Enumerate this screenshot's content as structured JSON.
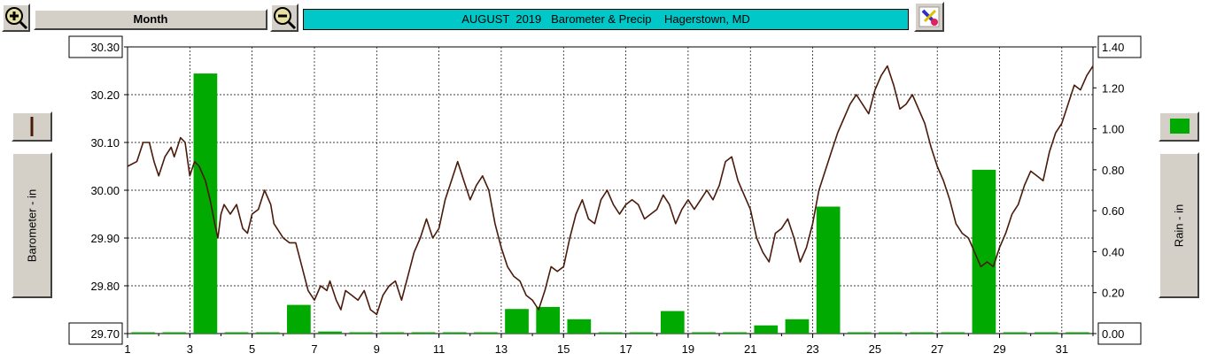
{
  "toolbar": {
    "period_label": "Month",
    "title": "AUGUST  2019   Barometer & Precip    Hagerstown, MD"
  },
  "left_axis": {
    "label": "Barometer - in"
  },
  "right_axis": {
    "label": "Rain - in"
  },
  "colors": {
    "pressure_line": "#4a1a0a",
    "rain_bar": "#00aa00",
    "title_bg": "#00c8c8"
  },
  "chart_data": {
    "type": "bar+line",
    "x_ticks": [
      "1",
      "3",
      "5",
      "7",
      "9",
      "11",
      "13",
      "15",
      "17",
      "19",
      "21",
      "23",
      "25",
      "27",
      "29",
      "31"
    ],
    "x_range": [
      1,
      32
    ],
    "y_left": {
      "label": "Barometer - in",
      "range": [
        29.7,
        30.3
      ],
      "ticks": [
        "29.70",
        "29.80",
        "29.90",
        "30.00",
        "30.10",
        "30.20",
        "30.30"
      ]
    },
    "y_right": {
      "label": "Rain - in",
      "range": [
        0.0,
        1.4
      ],
      "ticks": [
        "0.00",
        "0.20",
        "0.40",
        "0.60",
        "0.80",
        "1.00",
        "1.20",
        "1.40"
      ]
    },
    "grid": true,
    "series": [
      {
        "type": "bar",
        "axis": "right",
        "values": [
          {
            "day": 1,
            "rain": 0.0
          },
          {
            "day": 2,
            "rain": 0.0
          },
          {
            "day": 3,
            "rain": 1.27
          },
          {
            "day": 4,
            "rain": 0.0
          },
          {
            "day": 5,
            "rain": 0.0
          },
          {
            "day": 6,
            "rain": 0.14
          },
          {
            "day": 7,
            "rain": 0.01
          },
          {
            "day": 8,
            "rain": 0.0
          },
          {
            "day": 9,
            "rain": 0.0
          },
          {
            "day": 10,
            "rain": 0.0
          },
          {
            "day": 11,
            "rain": 0.0
          },
          {
            "day": 12,
            "rain": 0.0
          },
          {
            "day": 13,
            "rain": 0.12
          },
          {
            "day": 14,
            "rain": 0.13
          },
          {
            "day": 15,
            "rain": 0.07
          },
          {
            "day": 16,
            "rain": 0.0
          },
          {
            "day": 17,
            "rain": 0.0
          },
          {
            "day": 18,
            "rain": 0.11
          },
          {
            "day": 19,
            "rain": 0.0
          },
          {
            "day": 20,
            "rain": 0.0
          },
          {
            "day": 21,
            "rain": 0.04
          },
          {
            "day": 22,
            "rain": 0.07
          },
          {
            "day": 23,
            "rain": 0.62
          },
          {
            "day": 24,
            "rain": 0.0
          },
          {
            "day": 25,
            "rain": 0.0
          },
          {
            "day": 26,
            "rain": 0.0
          },
          {
            "day": 27,
            "rain": 0.0
          },
          {
            "day": 28,
            "rain": 0.8
          },
          {
            "day": 29,
            "rain": 0.0
          },
          {
            "day": 30,
            "rain": 0.0
          },
          {
            "day": 31,
            "rain": 0.0
          }
        ]
      },
      {
        "type": "line",
        "axis": "left",
        "points": [
          [
            1.0,
            30.05
          ],
          [
            1.3,
            30.06
          ],
          [
            1.5,
            30.1
          ],
          [
            1.7,
            30.1
          ],
          [
            1.85,
            30.06
          ],
          [
            2.0,
            30.03
          ],
          [
            2.2,
            30.07
          ],
          [
            2.4,
            30.09
          ],
          [
            2.5,
            30.07
          ],
          [
            2.7,
            30.11
          ],
          [
            2.85,
            30.1
          ],
          [
            3.0,
            30.03
          ],
          [
            3.15,
            30.06
          ],
          [
            3.3,
            30.05
          ],
          [
            3.5,
            30.02
          ],
          [
            3.65,
            29.98
          ],
          [
            3.8,
            29.93
          ],
          [
            3.9,
            29.9
          ],
          [
            4.0,
            29.95
          ],
          [
            4.1,
            29.97
          ],
          [
            4.3,
            29.95
          ],
          [
            4.5,
            29.97
          ],
          [
            4.7,
            29.92
          ],
          [
            4.85,
            29.91
          ],
          [
            5.0,
            29.95
          ],
          [
            5.2,
            29.96
          ],
          [
            5.4,
            30.0
          ],
          [
            5.6,
            29.97
          ],
          [
            5.7,
            29.93
          ],
          [
            5.8,
            29.92
          ],
          [
            6.0,
            29.9
          ],
          [
            6.2,
            29.89
          ],
          [
            6.4,
            29.89
          ],
          [
            6.6,
            29.84
          ],
          [
            6.8,
            29.79
          ],
          [
            7.0,
            29.77
          ],
          [
            7.2,
            29.8
          ],
          [
            7.4,
            29.79
          ],
          [
            7.5,
            29.81
          ],
          [
            7.7,
            29.77
          ],
          [
            7.85,
            29.75
          ],
          [
            8.0,
            29.79
          ],
          [
            8.2,
            29.78
          ],
          [
            8.4,
            29.77
          ],
          [
            8.6,
            29.79
          ],
          [
            8.8,
            29.75
          ],
          [
            9.0,
            29.74
          ],
          [
            9.2,
            29.78
          ],
          [
            9.4,
            29.8
          ],
          [
            9.6,
            29.81
          ],
          [
            9.8,
            29.77
          ],
          [
            10.0,
            29.82
          ],
          [
            10.2,
            29.87
          ],
          [
            10.4,
            29.9
          ],
          [
            10.6,
            29.94
          ],
          [
            10.8,
            29.9
          ],
          [
            11.0,
            29.92
          ],
          [
            11.2,
            29.98
          ],
          [
            11.4,
            30.02
          ],
          [
            11.6,
            30.06
          ],
          [
            11.8,
            30.02
          ],
          [
            12.0,
            29.98
          ],
          [
            12.2,
            30.01
          ],
          [
            12.4,
            30.03
          ],
          [
            12.6,
            30.0
          ],
          [
            12.8,
            29.93
          ],
          [
            13.0,
            29.88
          ],
          [
            13.2,
            29.84
          ],
          [
            13.4,
            29.82
          ],
          [
            13.6,
            29.81
          ],
          [
            13.8,
            29.78
          ],
          [
            14.0,
            29.77
          ],
          [
            14.2,
            29.75
          ],
          [
            14.4,
            29.79
          ],
          [
            14.6,
            29.84
          ],
          [
            14.8,
            29.83
          ],
          [
            15.0,
            29.84
          ],
          [
            15.2,
            29.9
          ],
          [
            15.4,
            29.95
          ],
          [
            15.6,
            29.98
          ],
          [
            15.8,
            29.94
          ],
          [
            16.0,
            29.93
          ],
          [
            16.2,
            29.98
          ],
          [
            16.4,
            30.0
          ],
          [
            16.6,
            29.97
          ],
          [
            16.8,
            29.95
          ],
          [
            17.0,
            29.97
          ],
          [
            17.2,
            29.98
          ],
          [
            17.4,
            29.97
          ],
          [
            17.6,
            29.94
          ],
          [
            17.8,
            29.95
          ],
          [
            18.0,
            29.96
          ],
          [
            18.2,
            29.99
          ],
          [
            18.4,
            29.97
          ],
          [
            18.6,
            29.93
          ],
          [
            18.8,
            29.96
          ],
          [
            19.0,
            29.98
          ],
          [
            19.2,
            29.96
          ],
          [
            19.4,
            29.98
          ],
          [
            19.6,
            30.0
          ],
          [
            19.8,
            29.98
          ],
          [
            20.0,
            30.01
          ],
          [
            20.2,
            30.06
          ],
          [
            20.4,
            30.07
          ],
          [
            20.6,
            30.02
          ],
          [
            20.8,
            29.99
          ],
          [
            21.0,
            29.96
          ],
          [
            21.2,
            29.9
          ],
          [
            21.4,
            29.87
          ],
          [
            21.6,
            29.85
          ],
          [
            21.8,
            29.91
          ],
          [
            22.0,
            29.92
          ],
          [
            22.2,
            29.94
          ],
          [
            22.4,
            29.9
          ],
          [
            22.6,
            29.85
          ],
          [
            22.8,
            29.88
          ],
          [
            23.0,
            29.93
          ],
          [
            23.2,
            30.0
          ],
          [
            23.4,
            30.04
          ],
          [
            23.6,
            30.08
          ],
          [
            23.8,
            30.12
          ],
          [
            24.0,
            30.15
          ],
          [
            24.2,
            30.18
          ],
          [
            24.4,
            30.2
          ],
          [
            24.6,
            30.18
          ],
          [
            24.8,
            30.16
          ],
          [
            25.0,
            30.21
          ],
          [
            25.2,
            30.24
          ],
          [
            25.4,
            30.26
          ],
          [
            25.6,
            30.22
          ],
          [
            25.8,
            30.17
          ],
          [
            26.0,
            30.18
          ],
          [
            26.2,
            30.2
          ],
          [
            26.4,
            30.17
          ],
          [
            26.6,
            30.14
          ],
          [
            26.8,
            30.09
          ],
          [
            27.0,
            30.05
          ],
          [
            27.2,
            30.02
          ],
          [
            27.4,
            29.98
          ],
          [
            27.6,
            29.93
          ],
          [
            27.8,
            29.91
          ],
          [
            28.0,
            29.9
          ],
          [
            28.2,
            29.87
          ],
          [
            28.4,
            29.84
          ],
          [
            28.6,
            29.85
          ],
          [
            28.8,
            29.84
          ],
          [
            29.0,
            29.88
          ],
          [
            29.2,
            29.91
          ],
          [
            29.4,
            29.95
          ],
          [
            29.6,
            29.97
          ],
          [
            29.8,
            30.01
          ],
          [
            30.0,
            30.04
          ],
          [
            30.2,
            30.03
          ],
          [
            30.4,
            30.02
          ],
          [
            30.6,
            30.08
          ],
          [
            30.8,
            30.12
          ],
          [
            31.0,
            30.14
          ],
          [
            31.2,
            30.18
          ],
          [
            31.4,
            30.22
          ],
          [
            31.6,
            30.21
          ],
          [
            31.8,
            30.24
          ],
          [
            32.0,
            30.26
          ]
        ]
      }
    ]
  }
}
